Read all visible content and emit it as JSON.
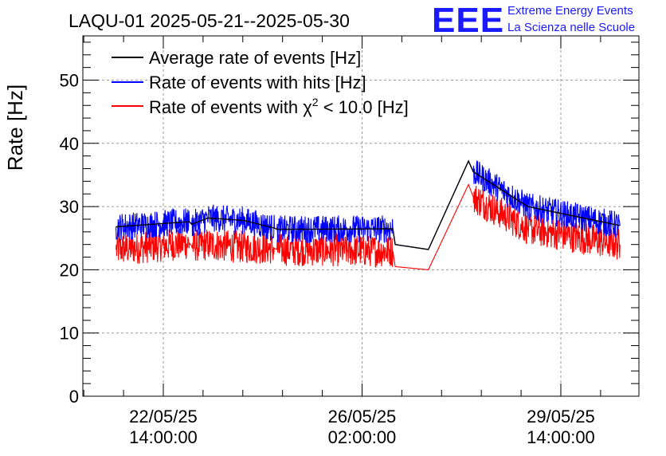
{
  "chart_data": {
    "type": "line",
    "title": "LAQU-01 2025-05-21--2025-05-30",
    "xlabel": "",
    "ylabel": "Rate [Hz]",
    "ylim": [
      0,
      57
    ],
    "y_ticks": [
      0,
      10,
      20,
      30,
      40,
      50
    ],
    "x_ticks": [
      {
        "date": "22/05/25",
        "time": "14:00:00",
        "t": "2025-05-22 14:00:00"
      },
      {
        "date": "26/05/25",
        "time": "02:00:00",
        "t": "2025-05-26 02:00:00"
      },
      {
        "date": "29/05/25",
        "time": "14:00:00",
        "t": "2025-05-29 14:00:00"
      }
    ],
    "xlim": [
      "2025-05-21 04:00:00",
      "2025-05-30 23:00:00"
    ],
    "grid": true,
    "legend_position": "top-left",
    "series": [
      {
        "name": "Average rate of events [Hz]",
        "color": "#000000",
        "x": [
          "2025-05-21 18:00",
          "2025-05-23 01:00",
          "2025-05-23 02:00",
          "2025-05-23 09:00",
          "2025-05-24 00:00",
          "2025-05-24 13:00",
          "2025-05-24 14:00",
          "2025-05-26 15:00",
          "2025-05-26 16:00",
          "2025-05-27 06:00",
          "2025-05-27 23:00",
          "2025-05-28 01:00",
          "2025-05-29 00:00",
          "2025-05-30 15:00"
        ],
        "y": [
          26.8,
          27.6,
          27.2,
          28.2,
          27.8,
          26.6,
          26.4,
          26.5,
          24.0,
          23.2,
          37.2,
          35.5,
          30.0,
          27.0
        ]
      },
      {
        "name": "Rate of events with hits [Hz]",
        "color": "#0000ff",
        "x": [
          "2025-05-21 18:00",
          "2025-05-23 01:00",
          "2025-05-23 02:00",
          "2025-05-23 09:00",
          "2025-05-24 00:00",
          "2025-05-24 13:00",
          "2025-05-24 14:00",
          "2025-05-26 15:00",
          "2025-05-26 16:00",
          "2025-05-27 06:00",
          "2025-05-27 23:00",
          "2025-05-28 01:00",
          "2025-05-29 00:00",
          "2025-05-30 15:00"
        ],
        "y": [
          26.8,
          27.6,
          27.2,
          28.2,
          27.8,
          26.6,
          26.4,
          26.5,
          24.0,
          23.2,
          37.2,
          35.5,
          30.0,
          27.0
        ]
      },
      {
        "name": "Rate of events with χ² < 10.0 [Hz]",
        "color": "#ff0000",
        "x": [
          "2025-05-21 18:00",
          "2025-05-23 01:00",
          "2025-05-23 02:00",
          "2025-05-23 09:00",
          "2025-05-24 00:00",
          "2025-05-24 13:00",
          "2025-05-24 14:00",
          "2025-05-26 15:00",
          "2025-05-26 16:00",
          "2025-05-27 06:00",
          "2025-05-27 23:00",
          "2025-05-28 01:00",
          "2025-05-29 00:00",
          "2025-05-30 15:00"
        ],
        "y": [
          23.2,
          24.2,
          23.8,
          24.0,
          23.6,
          23.4,
          23.2,
          23.0,
          20.5,
          20.0,
          33.5,
          31.5,
          26.5,
          24.0
        ]
      }
    ]
  },
  "legend": {
    "entries": [
      {
        "label": "Average rate of events [Hz]",
        "color": "#000000"
      },
      {
        "label": "Rate of events with hits [Hz]",
        "color": "#0000ff"
      },
      {
        "label_prefix": "Rate of events with ",
        "label_chi": "χ",
        "label_sup": "2",
        "label_suffix": " < 10.0 [Hz]",
        "color": "#ff0000"
      }
    ]
  },
  "logo": {
    "mark": "EEE",
    "line1": "Extreme Energy Events",
    "line2": "La Scienza nelle Scuole"
  }
}
